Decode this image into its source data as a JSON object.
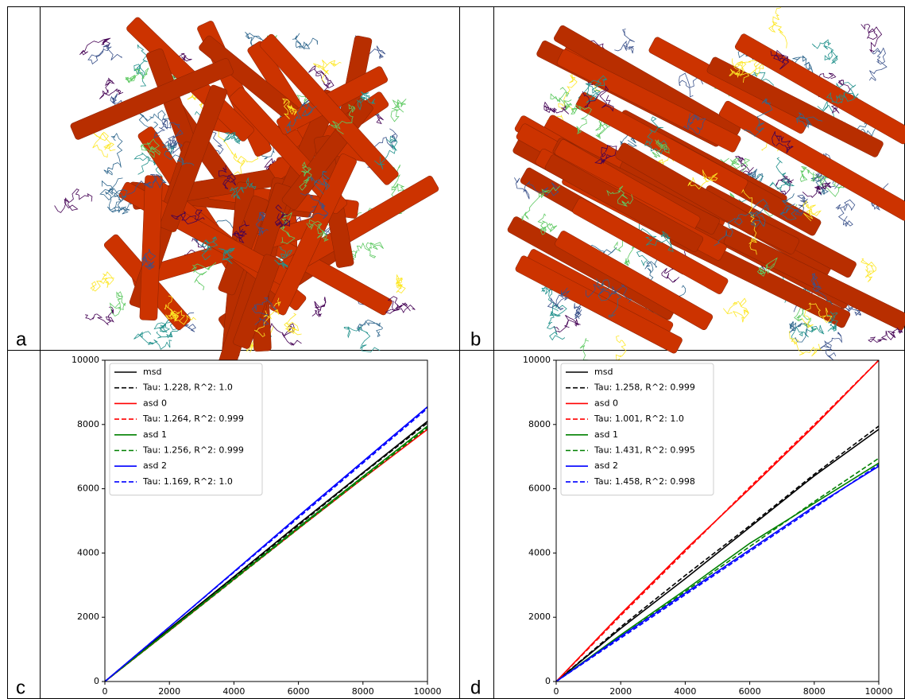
{
  "panel_labels": [
    "a",
    "b",
    "c",
    "d"
  ],
  "chart_data": [
    {
      "type": "line",
      "x": [
        0,
        2000,
        4000,
        6000,
        8000,
        10000
      ],
      "xlim": [
        0,
        10000
      ],
      "xticks": [
        0,
        2000,
        4000,
        6000,
        8000,
        10000
      ],
      "ylim": [
        0,
        10000
      ],
      "yticks": [
        0,
        2000,
        4000,
        6000,
        8000,
        10000
      ],
      "legend": "upper left",
      "series": [
        {
          "name": "msd",
          "color": "#000000",
          "linestyle": "solid",
          "values": [
            0,
            1640,
            3260,
            4900,
            6500,
            8100
          ]
        },
        {
          "name": "Tau: 1.228, R^2: 1.0",
          "color": "#000000",
          "linestyle": "dashed",
          "values": [
            0,
            1620,
            3240,
            4860,
            6480,
            8050
          ]
        },
        {
          "name": "asd 0",
          "color": "#ff0000",
          "linestyle": "solid",
          "values": [
            0,
            1580,
            3180,
            4760,
            6320,
            7850
          ]
        },
        {
          "name": "Tau: 1.264, R^2: 0.999",
          "color": "#ff0000",
          "linestyle": "dashed",
          "values": [
            0,
            1580,
            3170,
            4760,
            6340,
            7900
          ]
        },
        {
          "name": "asd 1",
          "color": "#008000",
          "linestyle": "solid",
          "values": [
            0,
            1600,
            3200,
            4800,
            6380,
            7950
          ]
        },
        {
          "name": "Tau: 1.256, R^2: 0.999",
          "color": "#008000",
          "linestyle": "dashed",
          "values": [
            0,
            1580,
            3170,
            4760,
            6330,
            7900
          ]
        },
        {
          "name": "asd 2",
          "color": "#0000ff",
          "linestyle": "solid",
          "values": [
            0,
            1700,
            3420,
            5150,
            6850,
            8550
          ]
        },
        {
          "name": "Tau: 1.169, R^2: 1.0",
          "color": "#0000ff",
          "linestyle": "dashed",
          "values": [
            0,
            1700,
            3400,
            5100,
            6800,
            8500
          ]
        }
      ]
    },
    {
      "type": "line",
      "x": [
        0,
        2000,
        4000,
        6000,
        8000,
        10000
      ],
      "xlim": [
        0,
        10000
      ],
      "xticks": [
        0,
        2000,
        4000,
        6000,
        8000,
        10000
      ],
      "ylim": [
        0,
        10000
      ],
      "yticks": [
        0,
        2000,
        4000,
        6000,
        8000,
        10000
      ],
      "legend": "upper left",
      "series": [
        {
          "name": "msd",
          "color": "#000000",
          "linestyle": "solid",
          "values": [
            0,
            1650,
            3200,
            4800,
            6400,
            7850
          ]
        },
        {
          "name": "Tau: 1.258, R^2: 0.999",
          "color": "#000000",
          "linestyle": "dashed",
          "values": [
            0,
            1700,
            3300,
            4850,
            6450,
            7950
          ]
        },
        {
          "name": "asd 0",
          "color": "#ff0000",
          "linestyle": "solid",
          "values": [
            0,
            2100,
            4100,
            6000,
            7950,
            10000
          ]
        },
        {
          "name": "Tau: 1.001, R^2: 1.0",
          "color": "#ff0000",
          "linestyle": "dashed",
          "values": [
            0,
            2050,
            4050,
            6050,
            8000,
            10000
          ]
        },
        {
          "name": "asd 1",
          "color": "#008000",
          "linestyle": "solid",
          "values": [
            0,
            1450,
            2850,
            4300,
            5550,
            6800
          ]
        },
        {
          "name": "Tau: 1.431, R^2: 0.995",
          "color": "#008000",
          "linestyle": "dashed",
          "values": [
            0,
            1400,
            2800,
            4200,
            5600,
            6950
          ]
        },
        {
          "name": "asd 2",
          "color": "#0000ff",
          "linestyle": "solid",
          "values": [
            0,
            1400,
            2750,
            4100,
            5450,
            6700
          ]
        },
        {
          "name": "Tau: 1.458, R^2: 0.998",
          "color": "#0000ff",
          "linestyle": "dashed",
          "values": [
            0,
            1350,
            2700,
            4050,
            5400,
            6750
          ]
        }
      ]
    }
  ]
}
